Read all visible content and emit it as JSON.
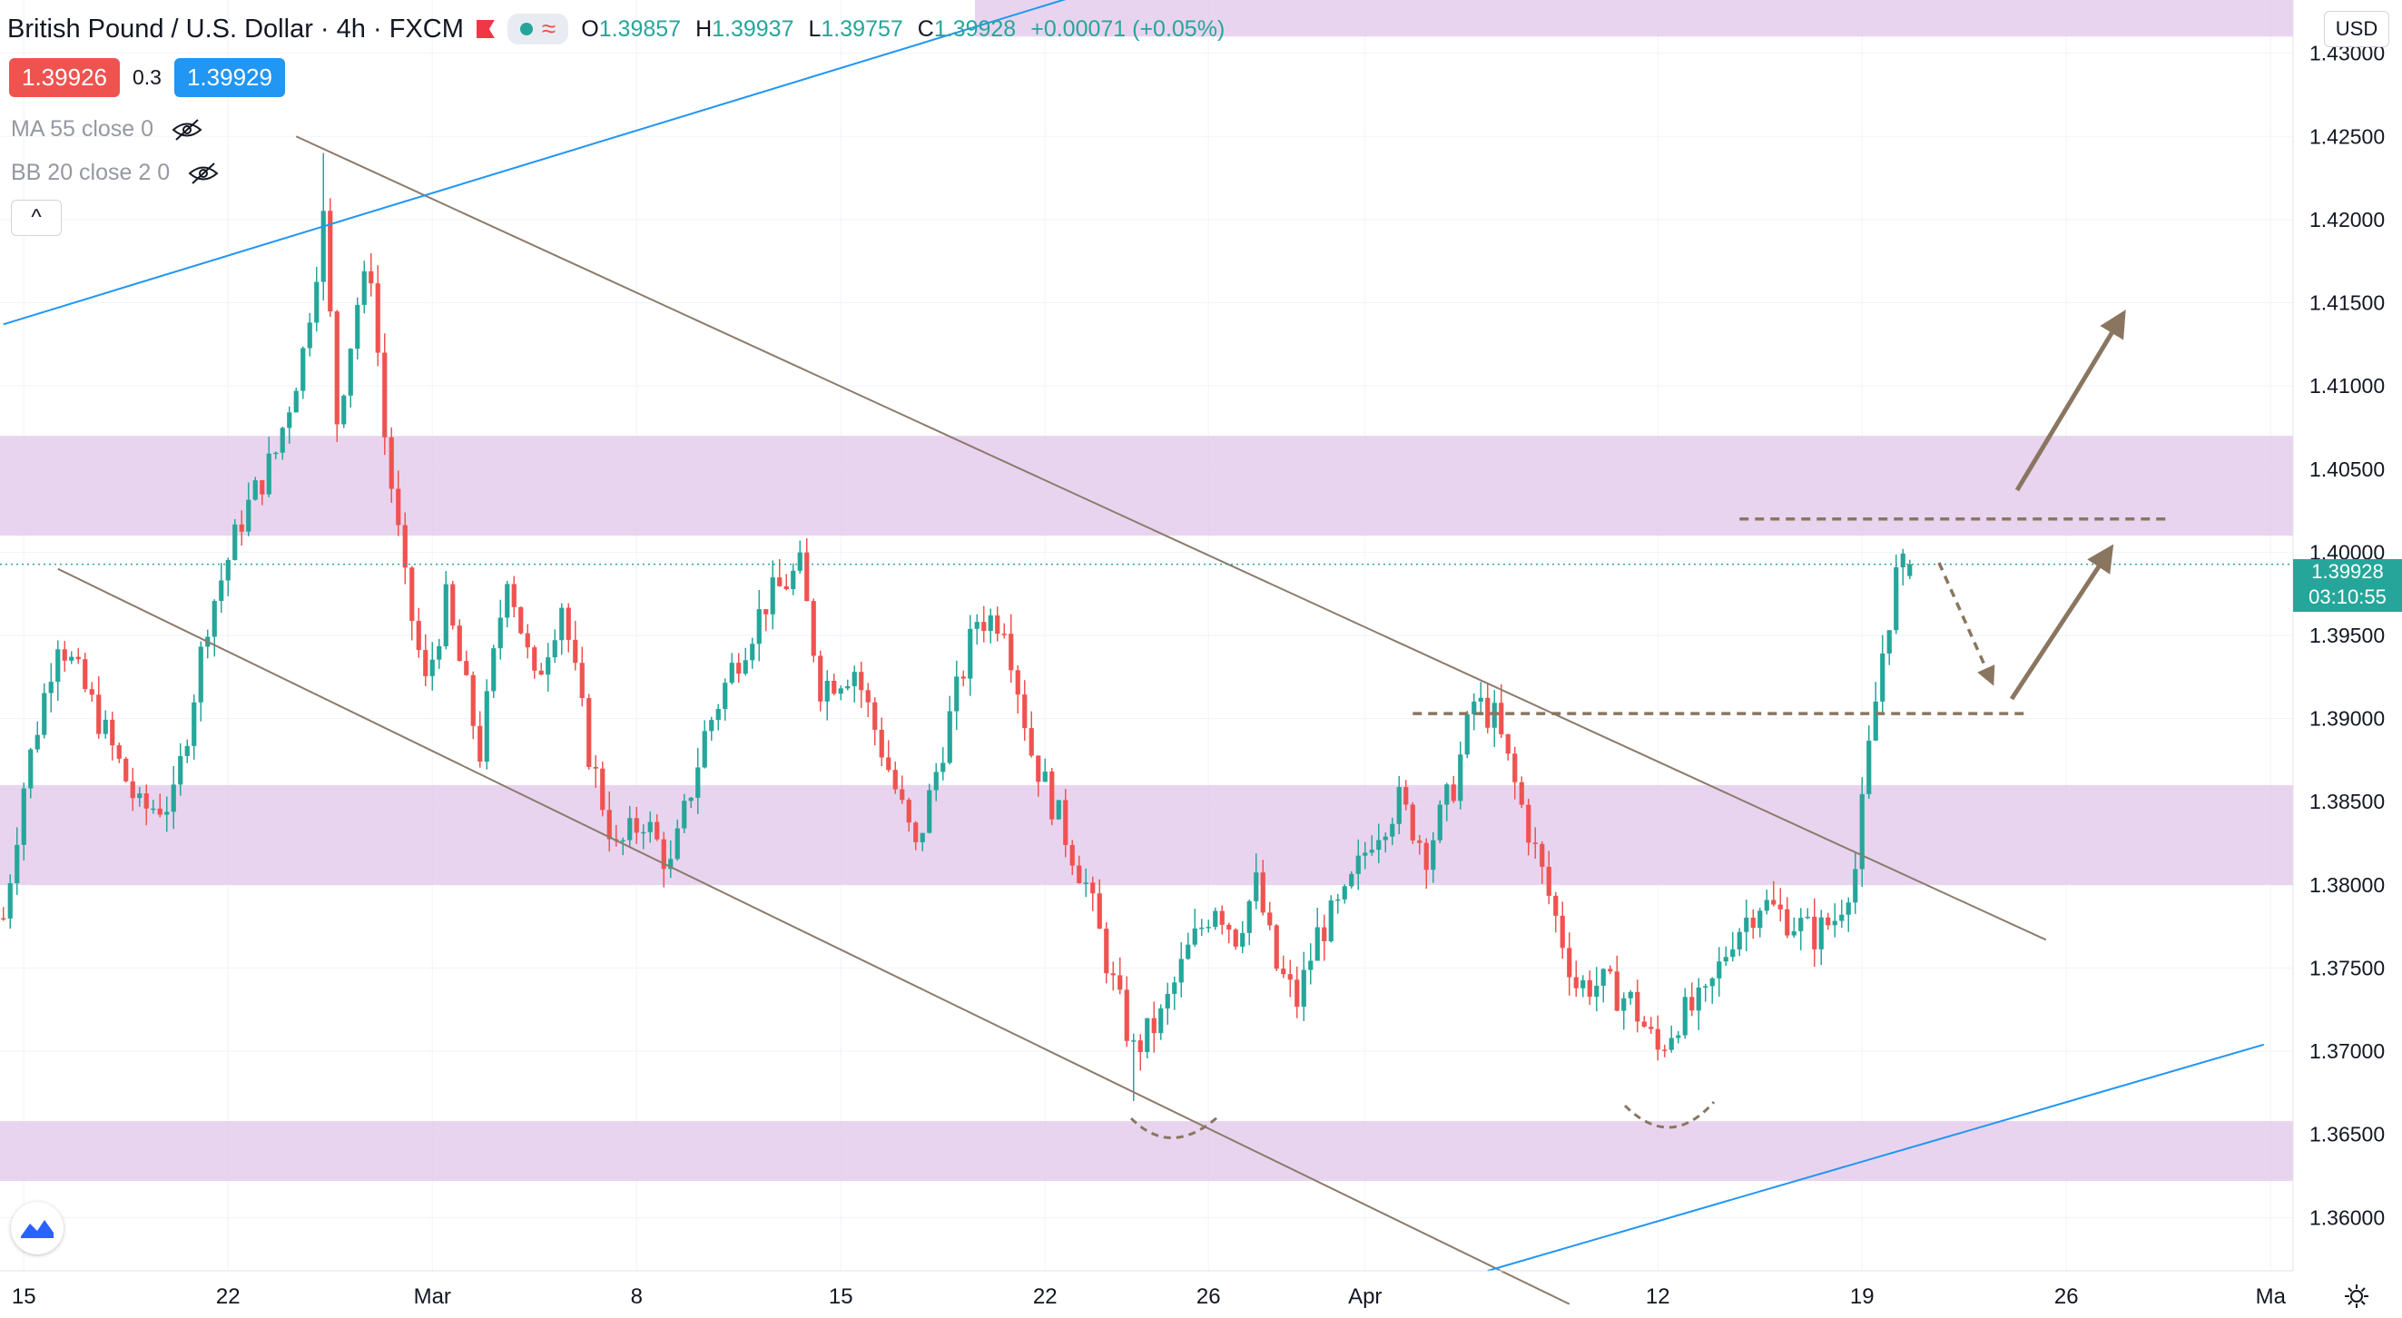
{
  "legend": {
    "title": "British Pound / U.S. Dollar",
    "interval": "4h",
    "broker": "FXCM",
    "status_icon": "green-dot",
    "wave_icon": "≈",
    "ohlc": {
      "open_label": "O",
      "open": "1.39857",
      "high_label": "H",
      "high": "1.39937",
      "low_label": "L",
      "low": "1.39757",
      "close_label": "C",
      "close": "1.39928",
      "change": "+0.00071 (+0.05%)"
    }
  },
  "trade": {
    "sell_price": "1.39926",
    "spread": "0.3",
    "buy_price": "1.39929"
  },
  "indicators": {
    "ma": "MA 55 close 0",
    "bb": "BB 20 close 2 0"
  },
  "collapse_glyph": "^",
  "currency": "USD",
  "last_price": {
    "price": "1.39928",
    "countdown": "03:10:55"
  },
  "colors": {
    "up": "#26a69a",
    "down": "#ef5350",
    "zone": "#e1c5ea",
    "channel": "#8c7b6b",
    "trendline": "#2196f3",
    "annotation": "#8a7660",
    "grid": "#f0f3fa"
  },
  "chart_data": {
    "type": "candlestick",
    "symbol": "GBPUSD",
    "ylim": [
      1.3568,
      1.4332
    ],
    "y_ticks": [
      "1.36000",
      "1.36500",
      "1.37000",
      "1.37500",
      "1.38000",
      "1.38500",
      "1.39000",
      "1.39500",
      "1.40000",
      "1.40500",
      "1.41000",
      "1.41500",
      "1.42000",
      "1.42500",
      "1.43000"
    ],
    "x_ticks": [
      {
        "label": "15",
        "bar": 3
      },
      {
        "label": "22",
        "bar": 33
      },
      {
        "label": "Mar",
        "bar": 63
      },
      {
        "label": "8",
        "bar": 93
      },
      {
        "label": "15",
        "bar": 123
      },
      {
        "label": "22",
        "bar": 153
      },
      {
        "label": "26",
        "bar": 177
      },
      {
        "label": "Apr",
        "bar": 200
      },
      {
        "label": "12",
        "bar": 243
      },
      {
        "label": "19",
        "bar": 273
      },
      {
        "label": "26",
        "bar": 303
      },
      {
        "label": "Ma",
        "bar": 333
      }
    ],
    "bar_count_visible": 336,
    "keypoints": [
      [
        0,
        1.378
      ],
      [
        3,
        1.386
      ],
      [
        8,
        1.395
      ],
      [
        14,
        1.39
      ],
      [
        20,
        1.3845
      ],
      [
        25,
        1.385
      ],
      [
        30,
        1.396
      ],
      [
        35,
        1.402
      ],
      [
        40,
        1.406
      ],
      [
        44,
        1.412
      ],
      [
        47,
        1.42
      ],
      [
        49,
        1.408
      ],
      [
        52,
        1.415
      ],
      [
        54,
        1.417
      ],
      [
        56,
        1.407
      ],
      [
        59,
        1.398
      ],
      [
        62,
        1.392
      ],
      [
        65,
        1.397
      ],
      [
        70,
        1.388
      ],
      [
        74,
        1.399
      ],
      [
        78,
        1.392
      ],
      [
        82,
        1.397
      ],
      [
        86,
        1.388
      ],
      [
        90,
        1.382
      ],
      [
        94,
        1.384
      ],
      [
        98,
        1.381
      ],
      [
        103,
        1.389
      ],
      [
        107,
        1.393
      ],
      [
        112,
        1.397
      ],
      [
        117,
        1.399
      ],
      [
        120,
        1.392
      ],
      [
        125,
        1.393
      ],
      [
        130,
        1.387
      ],
      [
        134,
        1.382
      ],
      [
        139,
        1.39
      ],
      [
        143,
        1.396
      ],
      [
        147,
        1.396
      ],
      [
        151,
        1.388
      ],
      [
        155,
        1.384
      ],
      [
        159,
        1.38
      ],
      [
        163,
        1.374
      ],
      [
        166,
        1.37
      ],
      [
        170,
        1.372
      ],
      [
        174,
        1.376
      ],
      [
        178,
        1.379
      ],
      [
        181,
        1.377
      ],
      [
        184,
        1.38
      ],
      [
        187,
        1.375
      ],
      [
        190,
        1.373
      ],
      [
        193,
        1.377
      ],
      [
        197,
        1.379
      ],
      [
        201,
        1.383
      ],
      [
        205,
        1.385
      ],
      [
        209,
        1.382
      ],
      [
        213,
        1.386
      ],
      [
        216,
        1.391
      ],
      [
        219,
        1.39
      ],
      [
        222,
        1.386
      ],
      [
        225,
        1.382
      ],
      [
        228,
        1.378
      ],
      [
        231,
        1.374
      ],
      [
        235,
        1.374
      ],
      [
        239,
        1.373
      ],
      [
        243,
        1.37
      ],
      [
        246,
        1.372
      ],
      [
        250,
        1.373
      ],
      [
        254,
        1.377
      ],
      [
        258,
        1.379
      ],
      [
        262,
        1.378
      ],
      [
        266,
        1.377
      ],
      [
        269,
        1.378
      ],
      [
        272,
        1.381
      ],
      [
        274,
        1.388
      ],
      [
        276,
        1.394
      ],
      [
        278,
        1.3985
      ],
      [
        280,
        1.3993
      ]
    ],
    "y_extremes": {
      "high": 1.424,
      "low": 1.367
    },
    "support_resistance_zones": [
      {
        "low": 1.401,
        "high": 1.407
      },
      {
        "low": 1.38,
        "high": 1.386
      },
      {
        "low": 1.3622,
        "high": 1.3658
      },
      {
        "low": 1.431,
        "high": 1.435
      }
    ],
    "channel_lines": [
      {
        "from": [
          43,
          1.425
        ],
        "to": [
          300,
          1.3767
        ]
      },
      {
        "from": [
          8,
          1.399
        ],
        "to": [
          230,
          1.3548
        ]
      }
    ],
    "trend_lines": [
      {
        "from": [
          0,
          1.4137
        ],
        "to": [
          170,
          1.435
        ]
      },
      {
        "from": [
          218,
          1.3568
        ],
        "to": [
          332,
          1.3704
        ]
      }
    ],
    "level_lines": [
      {
        "from": [
          207,
          1.3903
        ],
        "to": [
          297,
          1.3903
        ]
      },
      {
        "from": [
          255,
          1.402
        ],
        "to": [
          318,
          1.402
        ]
      }
    ],
    "last_price_line": 1.39928
  }
}
